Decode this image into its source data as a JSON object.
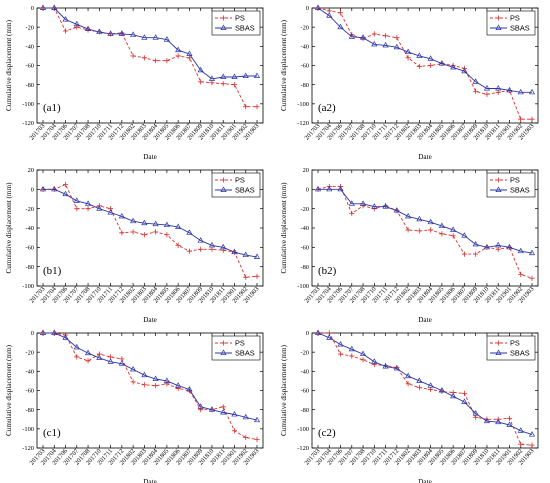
{
  "colors": {
    "ps": "#d9322e",
    "sbas": "#2b35a8",
    "axis": "#000000"
  },
  "legend": {
    "ps": "PS",
    "sbas": "SBAS"
  },
  "axes": {
    "xlabel": "Date",
    "ylabel": "Cumulative displacement (mm)"
  },
  "x_ticks": [
    "201703",
    "201704",
    "201706",
    "201707",
    "201708",
    "201710",
    "201711",
    "201712",
    "201802",
    "201803",
    "201804",
    "201805",
    "201806",
    "201807",
    "201809",
    "201810",
    "201811",
    "201901",
    "201902",
    "201903"
  ],
  "chart_data": [
    {
      "type": "line",
      "label": "(a1)",
      "ylim": [
        -120,
        0
      ],
      "yticks": [
        0,
        -20,
        -40,
        -60,
        -80,
        -100,
        -120
      ],
      "categories": [
        "201703",
        "201704",
        "201706",
        "201707",
        "201708",
        "201710",
        "201711",
        "201712",
        "201802",
        "201803",
        "201804",
        "201805",
        "201806",
        "201807",
        "201809",
        "201810",
        "201811",
        "201901",
        "201902",
        "201903"
      ],
      "series": [
        {
          "name": "PS",
          "values": [
            0,
            0,
            -24,
            -20,
            -23,
            -25,
            -27,
            -26,
            -50,
            -52,
            -55,
            -55,
            -50,
            -52,
            -77,
            -78,
            -79,
            -80,
            -103,
            -103
          ]
        },
        {
          "name": "SBAS",
          "values": [
            0,
            0,
            -12,
            -17,
            -22,
            -25,
            -27,
            -27,
            -28,
            -31,
            -31,
            -33,
            -44,
            -48,
            -65,
            -74,
            -72,
            -72,
            -71,
            -71
          ]
        }
      ]
    },
    {
      "type": "line",
      "label": "(a2)",
      "ylim": [
        -120,
        0
      ],
      "yticks": [
        0,
        -20,
        -40,
        -60,
        -80,
        -100,
        -120
      ],
      "categories": [
        "201703",
        "201704",
        "201706",
        "201707",
        "201708",
        "201710",
        "201711",
        "201712",
        "201802",
        "201803",
        "201804",
        "201805",
        "201806",
        "201807",
        "201809",
        "201810",
        "201811",
        "201901",
        "201902",
        "201903"
      ],
      "series": [
        {
          "name": "PS",
          "values": [
            0,
            -3,
            -5,
            -28,
            -32,
            -27,
            -29,
            -31,
            -52,
            -61,
            -60,
            -58,
            -60,
            -63,
            -87,
            -90,
            -88,
            -86,
            -116,
            -116
          ]
        },
        {
          "name": "SBAS",
          "values": [
            0,
            -8,
            -20,
            -30,
            -31,
            -38,
            -39,
            -41,
            -46,
            -50,
            -53,
            -58,
            -62,
            -66,
            -77,
            -84,
            -84,
            -86,
            -88,
            -88
          ]
        }
      ]
    },
    {
      "type": "line",
      "label": "(b1)",
      "ylim": [
        -100,
        20
      ],
      "yticks": [
        20,
        0,
        -20,
        -40,
        -60,
        -80,
        -100
      ],
      "categories": [
        "201703",
        "201704",
        "201706",
        "201707",
        "201708",
        "201710",
        "201711",
        "201712",
        "201802",
        "201803",
        "201804",
        "201805",
        "201806",
        "201807",
        "201809",
        "201810",
        "201811",
        "201901",
        "201902",
        "201903"
      ],
      "series": [
        {
          "name": "PS",
          "values": [
            0,
            0,
            5,
            -20,
            -20,
            -17,
            -20,
            -45,
            -44,
            -47,
            -44,
            -47,
            -58,
            -64,
            -62,
            -62,
            -63,
            -65,
            -91,
            -90
          ]
        },
        {
          "name": "SBAS",
          "values": [
            0,
            0,
            -5,
            -12,
            -15,
            -20,
            -24,
            -28,
            -33,
            -35,
            -36,
            -37,
            -39,
            -45,
            -53,
            -58,
            -60,
            -65,
            -68,
            -70
          ]
        }
      ]
    },
    {
      "type": "line",
      "label": "(b2)",
      "ylim": [
        -100,
        20
      ],
      "yticks": [
        20,
        0,
        -20,
        -40,
        -60,
        -80,
        -100
      ],
      "categories": [
        "201703",
        "201704",
        "201706",
        "201707",
        "201708",
        "201710",
        "201711",
        "201712",
        "201802",
        "201803",
        "201804",
        "201805",
        "201806",
        "201807",
        "201809",
        "201810",
        "201811",
        "201901",
        "201902",
        "201903"
      ],
      "series": [
        {
          "name": "PS",
          "values": [
            0,
            3,
            3,
            -25,
            -17,
            -20,
            -17,
            -22,
            -42,
            -43,
            -42,
            -46,
            -48,
            -67,
            -67,
            -60,
            -62,
            -60,
            -88,
            -92
          ]
        },
        {
          "name": "SBAS",
          "values": [
            0,
            0,
            0,
            -15,
            -15,
            -18,
            -18,
            -22,
            -28,
            -31,
            -34,
            -38,
            -42,
            -48,
            -57,
            -60,
            -58,
            -60,
            -64,
            -66
          ]
        }
      ]
    },
    {
      "type": "line",
      "label": "(c1)",
      "ylim": [
        -120,
        0
      ],
      "yticks": [
        0,
        -20,
        -40,
        -60,
        -80,
        -100,
        -120
      ],
      "categories": [
        "201703",
        "201704",
        "201706",
        "201707",
        "201708",
        "201710",
        "201711",
        "201712",
        "201802",
        "201803",
        "201804",
        "201805",
        "201806",
        "201807",
        "201809",
        "201810",
        "201811",
        "201901",
        "201902",
        "201903"
      ],
      "series": [
        {
          "name": "PS",
          "values": [
            0,
            0,
            -2,
            -25,
            -29,
            -22,
            -25,
            -27,
            -51,
            -54,
            -55,
            -53,
            -58,
            -60,
            -80,
            -80,
            -77,
            -102,
            -109,
            -111
          ]
        },
        {
          "name": "SBAS",
          "values": [
            0,
            0,
            -5,
            -15,
            -21,
            -26,
            -30,
            -32,
            -38,
            -44,
            -48,
            -50,
            -55,
            -59,
            -77,
            -80,
            -83,
            -85,
            -88,
            -91
          ]
        }
      ]
    },
    {
      "type": "line",
      "label": "(c2)",
      "ylim": [
        -120,
        0
      ],
      "yticks": [
        0,
        -20,
        -40,
        -60,
        -80,
        -100,
        -120
      ],
      "categories": [
        "201703",
        "201704",
        "201706",
        "201707",
        "201708",
        "201710",
        "201711",
        "201712",
        "201802",
        "201803",
        "201804",
        "201805",
        "201806",
        "201807",
        "201809",
        "201810",
        "201811",
        "201901",
        "201902",
        "201903"
      ],
      "series": [
        {
          "name": "PS",
          "values": [
            0,
            0,
            -22,
            -24,
            -28,
            -33,
            -34,
            -36,
            -53,
            -57,
            -59,
            -61,
            -62,
            -63,
            -88,
            -90,
            -90,
            -89,
            -116,
            -117
          ]
        },
        {
          "name": "SBAS",
          "values": [
            0,
            -5,
            -12,
            -17,
            -22,
            -30,
            -35,
            -37,
            -45,
            -50,
            -55,
            -60,
            -66,
            -72,
            -84,
            -92,
            -93,
            -96,
            -102,
            -106
          ]
        }
      ]
    }
  ]
}
